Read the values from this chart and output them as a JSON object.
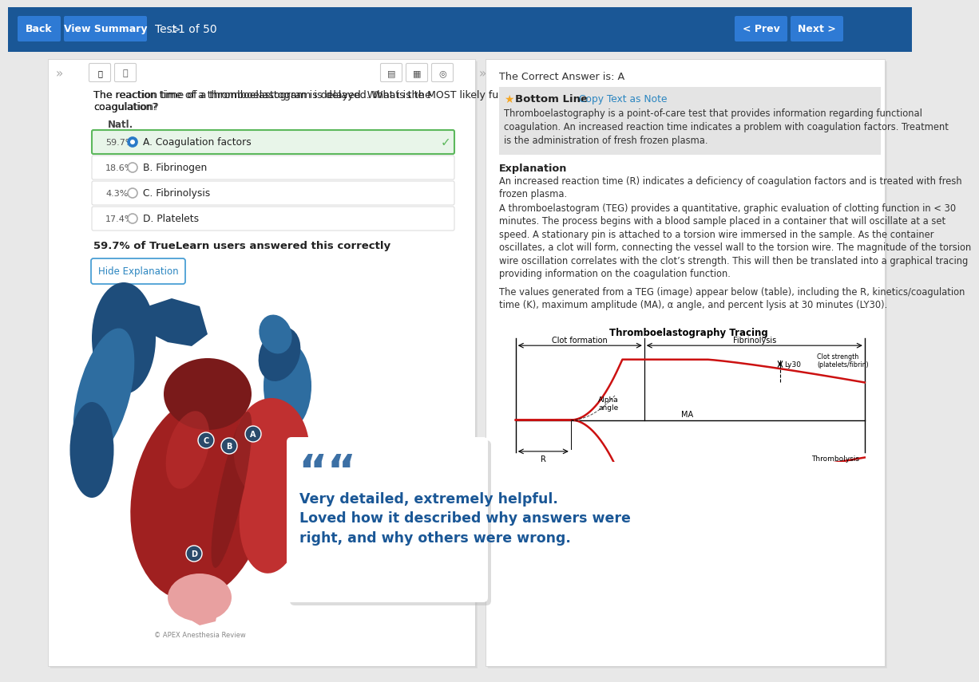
{
  "bg_color": "#e8e8e8",
  "nav_bg": "#1a5796",
  "nav_text": "Test  ›  1 of 50",
  "question_text": "The reaction time of a thromboelastogram is delayed. What is the MOST likely functional deficiency of coagulation?",
  "natl_label": "Natl.",
  "answer_a_pct": "59.7%",
  "answer_a_text": "A. Coagulation factors",
  "answer_b_pct": "18.6%",
  "answer_b_text": "B. Fibrinogen",
  "answer_c_pct": "4.3%",
  "answer_c_text": "C. Fibrinolysis",
  "answer_d_pct": "17.4%",
  "answer_d_text": "D. Platelets",
  "stat_text": "59.7% of TrueLearn users answered this correctly",
  "hide_btn_text": "Hide Explanation",
  "correct_answer_text": "The Correct Answer is: A",
  "bottom_line_title": "Bottom Line",
  "copy_text_note": "Copy Text as Note",
  "bottom_line_body": "Thromboelastography is a point-of-care test that provides information regarding functional\ncoagulation. An increased reaction time indicates a problem with coagulation factors. Treatment\nis the administration of fresh frozen plasma.",
  "explanation_title": "Explanation",
  "explanation_p1_pre": "An increased reaction time (R) indicates a deficiency of ",
  "explanation_p1_bold": "coagulation factors",
  "explanation_p1_post": " and is treated with fresh\nfrozen plasma.",
  "explanation_p2": "A thromboelastogram (TEG) provides a quantitative, graphic evaluation of clotting function in < 30\nminutes. The process begins with a blood sample placed in a container that will oscillate at a set\nspeed. A stationary pin is attached to a torsion wire immersed in the sample. As the container\noscillates, a clot will form, connecting the vessel wall to the torsion wire. The magnitude of the torsion\nwire oscillation correlates with the clot’s strength. This will then be translated into a graphical tracing\nproviding information on the coagulation function.",
  "explanation_p3": "The values generated from a TEG (image) appear below (table), including the R, kinetics/coagulation\ntime (K), maximum amplitude (MA), α angle, and percent lysis at 30 minutes (LY30).",
  "teg_title": "Thromboelastography Tracing",
  "teg_label_clot": "Clot formation",
  "teg_label_fibrin": "Fibrinolysis",
  "teg_label_r": "R",
  "teg_label_ma": "MA",
  "teg_label_alpha": "Alpha\nangle",
  "teg_label_ly30": "Ly30",
  "teg_label_clotstrength": "Clot strength\n(platelets/fibrin)",
  "teg_label_thrombolysis": "Thrombolysis",
  "quote_text": "Very detailed, extremely helpful.\nLoved how it described why answers were\nright, and why others were wrong.",
  "quote_color": "#1a5796",
  "answer_a_bg": "#e8f5e9",
  "answer_a_border": "#5cb85c",
  "answer_bg_default": "#ffffff",
  "answer_border_default": "#dddddd",
  "bottom_line_bg": "#e4e4e4",
  "heart_blue_dark": "#1e4d7b",
  "heart_blue_mid": "#2e6da0",
  "heart_blue_light": "#4a8ab5",
  "heart_red_dark": "#7a1a1a",
  "heart_red_mid": "#a02020",
  "heart_red_bright": "#c03030",
  "heart_pink": "#d96060",
  "heart_pink_light": "#e8a0a0"
}
